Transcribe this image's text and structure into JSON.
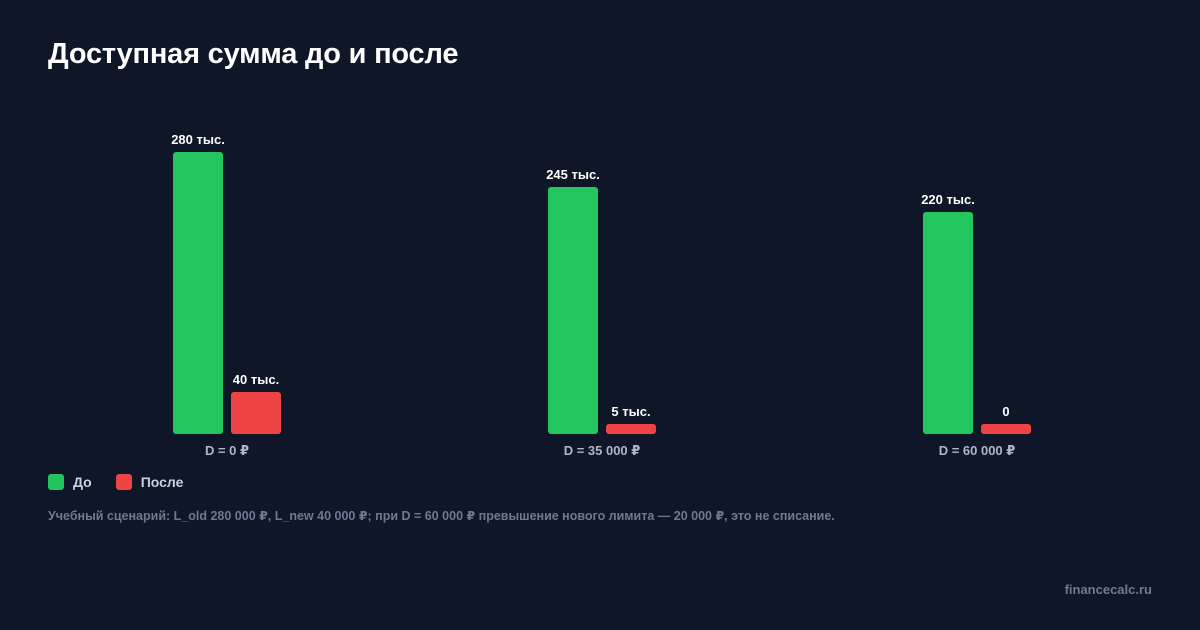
{
  "title": "Доступная сумма до и после",
  "chart_data": {
    "type": "bar",
    "categories": [
      "D = 0 ₽",
      "D = 35 000 ₽",
      "D = 60 000 ₽"
    ],
    "series": [
      {
        "name": "До",
        "color": "#22c55e",
        "values": [
          280000,
          245000,
          220000
        ],
        "labels": [
          "280 тыс.",
          "245 тыс.",
          "220 тыс."
        ]
      },
      {
        "name": "После",
        "color": "#ef4444",
        "values": [
          40000,
          5000,
          0
        ],
        "labels": [
          "40 тыс.",
          "5 тыс.",
          "0"
        ]
      }
    ],
    "ylim": [
      0,
      280000
    ],
    "legend_position": "bottom-left",
    "grid": false
  },
  "legend": {
    "before": "До",
    "after": "После"
  },
  "footnote": "Учебный сценарий: L_old 280 000 ₽, L_new 40 000 ₽; при D = 60 000 ₽ превышение нового лимита — 20 000 ₽, это не списание.",
  "brand": "financecalc.ru",
  "colors": {
    "background": "#0e1628",
    "before": "#22c55e",
    "after": "#ef4444"
  }
}
